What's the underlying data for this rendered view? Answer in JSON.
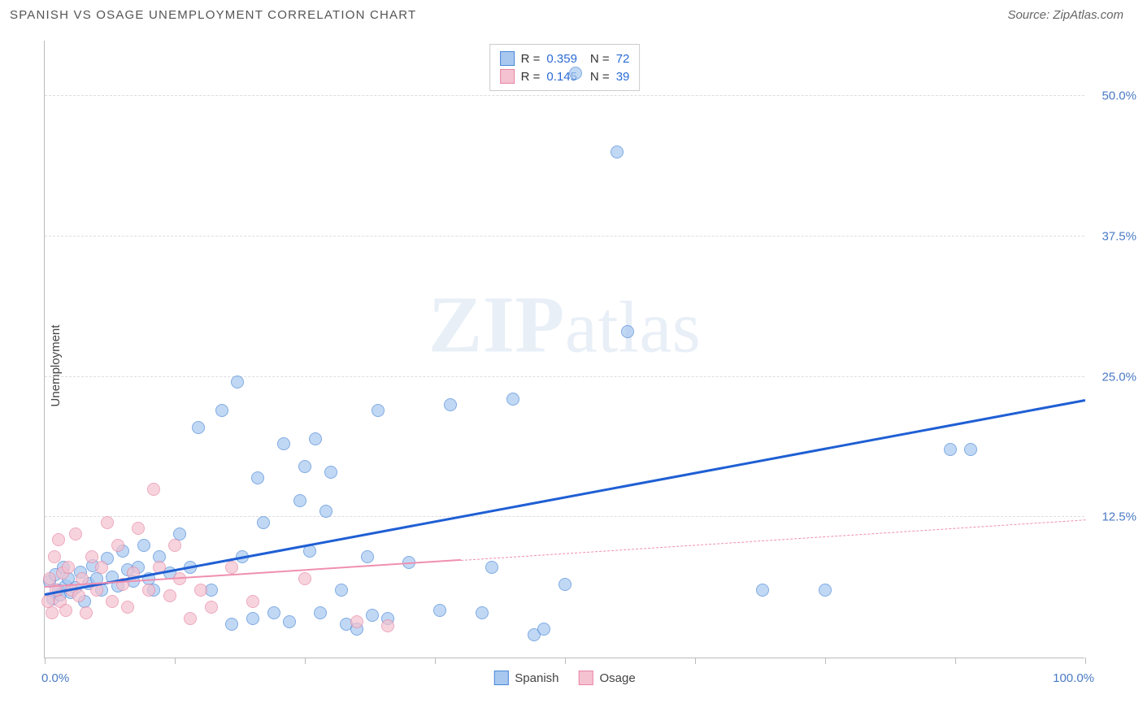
{
  "title": "SPANISH VS OSAGE UNEMPLOYMENT CORRELATION CHART",
  "source": "Source: ZipAtlas.com",
  "watermark_text": "ZIPatlas",
  "chart": {
    "type": "scatter",
    "ylabel": "Unemployment",
    "xlim": [
      0,
      100
    ],
    "ylim": [
      0,
      55
    ],
    "x_min_label": "0.0%",
    "x_max_label": "100.0%",
    "y_gridlines": [
      {
        "value": 12.5,
        "label": "12.5%"
      },
      {
        "value": 25.0,
        "label": "25.0%"
      },
      {
        "value": 37.5,
        "label": "37.5%"
      },
      {
        "value": 50.0,
        "label": "50.0%"
      }
    ],
    "x_ticks": [
      0,
      12.5,
      25,
      37.5,
      50,
      62.5,
      75,
      87.5,
      100
    ],
    "colors": {
      "spanish_fill": "#a8c8f0",
      "spanish_stroke": "#4a88d8",
      "spanish_line": "#1f5fd4",
      "osage_fill": "#f4c2d0",
      "osage_stroke": "#e886a4",
      "osage_line": "#f08fb0",
      "grid": "#dddddd",
      "axis": "#bbbbbb",
      "text": "#555555",
      "value": "#2b6cd4",
      "y_tick_text": "#4a7ac4"
    },
    "marker_size": 16,
    "series": [
      {
        "name": "Spanish",
        "R": "0.359",
        "N": "72",
        "reg_start": {
          "x": 0,
          "y": 5.5
        },
        "reg_end": {
          "x": 100,
          "y": 22.8
        },
        "points": [
          {
            "x": 0.5,
            "y": 6.8
          },
          {
            "x": 0.8,
            "y": 5.2
          },
          {
            "x": 1.0,
            "y": 7.4
          },
          {
            "x": 1.3,
            "y": 6.0
          },
          {
            "x": 1.5,
            "y": 5.6
          },
          {
            "x": 1.8,
            "y": 8.0
          },
          {
            "x": 2.0,
            "y": 6.4
          },
          {
            "x": 2.3,
            "y": 7.0
          },
          {
            "x": 2.5,
            "y": 5.8
          },
          {
            "x": 3.0,
            "y": 6.2
          },
          {
            "x": 3.4,
            "y": 7.6
          },
          {
            "x": 3.8,
            "y": 5.0
          },
          {
            "x": 4.2,
            "y": 6.6
          },
          {
            "x": 4.6,
            "y": 8.2
          },
          {
            "x": 5.0,
            "y": 7.0
          },
          {
            "x": 5.5,
            "y": 6.0
          },
          {
            "x": 6.0,
            "y": 8.8
          },
          {
            "x": 6.5,
            "y": 7.2
          },
          {
            "x": 7.0,
            "y": 6.4
          },
          {
            "x": 7.5,
            "y": 9.5
          },
          {
            "x": 8.0,
            "y": 7.8
          },
          {
            "x": 8.5,
            "y": 6.8
          },
          {
            "x": 9.0,
            "y": 8.0
          },
          {
            "x": 9.5,
            "y": 10.0
          },
          {
            "x": 10.0,
            "y": 7.0
          },
          {
            "x": 10.5,
            "y": 6.0
          },
          {
            "x": 11.0,
            "y": 9.0
          },
          {
            "x": 12.0,
            "y": 7.5
          },
          {
            "x": 13.0,
            "y": 11.0
          },
          {
            "x": 14.0,
            "y": 8.0
          },
          {
            "x": 14.8,
            "y": 20.5
          },
          {
            "x": 16.0,
            "y": 6.0
          },
          {
            "x": 17.0,
            "y": 22.0
          },
          {
            "x": 18.0,
            "y": 3.0
          },
          {
            "x": 18.5,
            "y": 24.5
          },
          {
            "x": 19.0,
            "y": 9.0
          },
          {
            "x": 20.0,
            "y": 3.5
          },
          {
            "x": 20.5,
            "y": 16.0
          },
          {
            "x": 21.0,
            "y": 12.0
          },
          {
            "x": 22.0,
            "y": 4.0
          },
          {
            "x": 23.0,
            "y": 19.0
          },
          {
            "x": 23.5,
            "y": 3.2
          },
          {
            "x": 24.5,
            "y": 14.0
          },
          {
            "x": 25.0,
            "y": 17.0
          },
          {
            "x": 25.5,
            "y": 9.5
          },
          {
            "x": 26.0,
            "y": 19.5
          },
          {
            "x": 26.5,
            "y": 4.0
          },
          {
            "x": 27.0,
            "y": 13.0
          },
          {
            "x": 27.5,
            "y": 16.5
          },
          {
            "x": 28.5,
            "y": 6.0
          },
          {
            "x": 29.0,
            "y": 3.0
          },
          {
            "x": 30.0,
            "y": 2.5
          },
          {
            "x": 31.0,
            "y": 9.0
          },
          {
            "x": 31.5,
            "y": 3.8
          },
          {
            "x": 32.0,
            "y": 22.0
          },
          {
            "x": 33.0,
            "y": 3.5
          },
          {
            "x": 35.0,
            "y": 8.5
          },
          {
            "x": 38.0,
            "y": 4.2
          },
          {
            "x": 39.0,
            "y": 22.5
          },
          {
            "x": 42.0,
            "y": 4.0
          },
          {
            "x": 45.0,
            "y": 23.0
          },
          {
            "x": 47.0,
            "y": 2.0
          },
          {
            "x": 48.0,
            "y": 2.5
          },
          {
            "x": 50.0,
            "y": 6.5
          },
          {
            "x": 51.0,
            "y": 52.0
          },
          {
            "x": 55.0,
            "y": 45.0
          },
          {
            "x": 56.0,
            "y": 29.0
          },
          {
            "x": 69.0,
            "y": 6.0
          },
          {
            "x": 75.0,
            "y": 6.0
          },
          {
            "x": 87.0,
            "y": 18.5
          },
          {
            "x": 89.0,
            "y": 18.5
          },
          {
            "x": 43.0,
            "y": 8.0
          }
        ]
      },
      {
        "name": "Osage",
        "R": "0.145",
        "N": "39",
        "reg_start": {
          "x": 0,
          "y": 6.2
        },
        "reg_solid_end": {
          "x": 40,
          "y": 8.6
        },
        "reg_end": {
          "x": 100,
          "y": 12.2
        },
        "points": [
          {
            "x": 0.3,
            "y": 5.0
          },
          {
            "x": 0.5,
            "y": 7.0
          },
          {
            "x": 0.7,
            "y": 4.0
          },
          {
            "x": 0.9,
            "y": 9.0
          },
          {
            "x": 1.1,
            "y": 6.0
          },
          {
            "x": 1.3,
            "y": 10.5
          },
          {
            "x": 1.5,
            "y": 5.0
          },
          {
            "x": 1.7,
            "y": 7.5
          },
          {
            "x": 2.0,
            "y": 4.2
          },
          {
            "x": 2.3,
            "y": 8.0
          },
          {
            "x": 2.6,
            "y": 6.0
          },
          {
            "x": 3.0,
            "y": 11.0
          },
          {
            "x": 3.3,
            "y": 5.5
          },
          {
            "x": 3.6,
            "y": 7.0
          },
          {
            "x": 4.0,
            "y": 4.0
          },
          {
            "x": 4.5,
            "y": 9.0
          },
          {
            "x": 5.0,
            "y": 6.0
          },
          {
            "x": 5.5,
            "y": 8.0
          },
          {
            "x": 6.0,
            "y": 12.0
          },
          {
            "x": 6.5,
            "y": 5.0
          },
          {
            "x": 7.0,
            "y": 10.0
          },
          {
            "x": 7.5,
            "y": 6.5
          },
          {
            "x": 8.0,
            "y": 4.5
          },
          {
            "x": 8.5,
            "y": 7.5
          },
          {
            "x": 9.0,
            "y": 11.5
          },
          {
            "x": 10.0,
            "y": 6.0
          },
          {
            "x": 10.5,
            "y": 15.0
          },
          {
            "x": 11.0,
            "y": 8.0
          },
          {
            "x": 12.0,
            "y": 5.5
          },
          {
            "x": 12.5,
            "y": 10.0
          },
          {
            "x": 13.0,
            "y": 7.0
          },
          {
            "x": 14.0,
            "y": 3.5
          },
          {
            "x": 15.0,
            "y": 6.0
          },
          {
            "x": 16.0,
            "y": 4.5
          },
          {
            "x": 18.0,
            "y": 8.0
          },
          {
            "x": 20.0,
            "y": 5.0
          },
          {
            "x": 25.0,
            "y": 7.0
          },
          {
            "x": 30.0,
            "y": 3.2
          },
          {
            "x": 33.0,
            "y": 2.8
          }
        ]
      }
    ],
    "legend_top": {
      "rows": [
        {
          "sw": "spanish",
          "R_label": "R =",
          "R": "0.359",
          "N_label": "N =",
          "N": "72"
        },
        {
          "sw": "osage",
          "R_label": "R =",
          "R": "0.145",
          "N_label": "N =",
          "N": "39"
        }
      ]
    },
    "legend_bottom": [
      {
        "sw": "spanish",
        "label": "Spanish"
      },
      {
        "sw": "osage",
        "label": "Osage"
      }
    ]
  }
}
